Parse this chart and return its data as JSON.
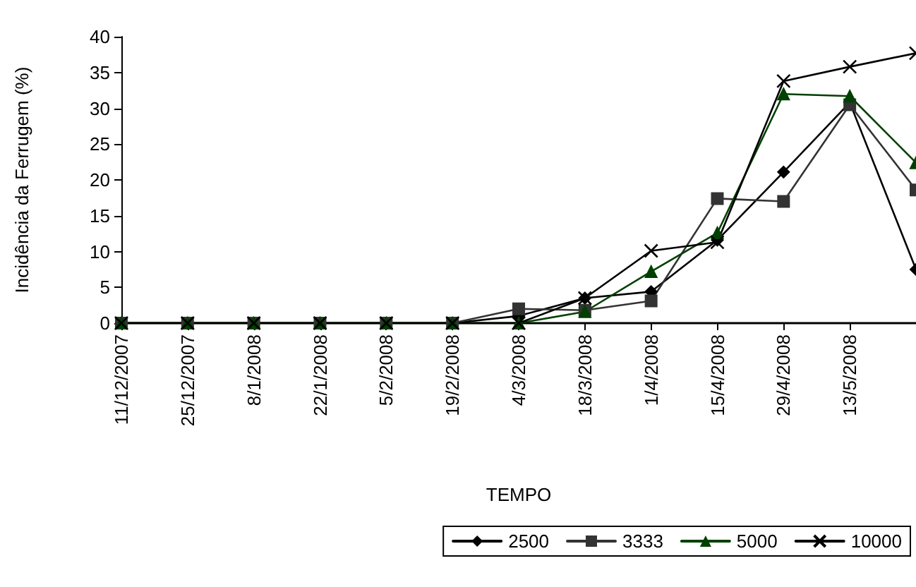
{
  "chart_data": {
    "type": "line",
    "xlabel": "TEMPO",
    "ylabel": "Incidência da Ferrugem (%)",
    "categories": [
      "11/12/2007",
      "25/12/2007",
      "8/1/2008",
      "22/1/2008",
      "5/2/2008",
      "19/2/2008",
      "4/3/2008",
      "18/3/2008",
      "1/4/2008",
      "15/4/2008",
      "29/4/2008",
      "13/5/2008",
      null
    ],
    "series": [
      {
        "name": "2500",
        "color": "#000000",
        "marker": "diamond",
        "values": [
          0,
          0,
          0,
          0,
          0,
          0,
          1,
          3.5,
          4.4,
          11.6,
          21.1,
          30.8,
          7.5
        ]
      },
      {
        "name": "3333",
        "color": "#333333",
        "marker": "square",
        "values": [
          0,
          0,
          0,
          0,
          0,
          0,
          2,
          1.8,
          3.1,
          17.4,
          17,
          30.5,
          18.6
        ]
      },
      {
        "name": "5000",
        "color": "#004000",
        "marker": "triangle",
        "values": [
          0,
          0,
          0,
          0,
          0,
          0,
          0,
          1.6,
          7.2,
          12.6,
          32,
          31.7,
          22.4
        ]
      },
      {
        "name": "10000",
        "color": "#000000",
        "marker": "cross",
        "values": [
          0,
          0,
          0,
          0,
          0,
          0,
          0,
          3.5,
          10.1,
          11.3,
          33.8,
          35.8,
          37.7
        ]
      }
    ],
    "ylim": [
      0,
      40
    ],
    "yticks": [
      0,
      5,
      10,
      15,
      20,
      25,
      30,
      35,
      40
    ],
    "grid": false,
    "legend": "bottom right"
  }
}
